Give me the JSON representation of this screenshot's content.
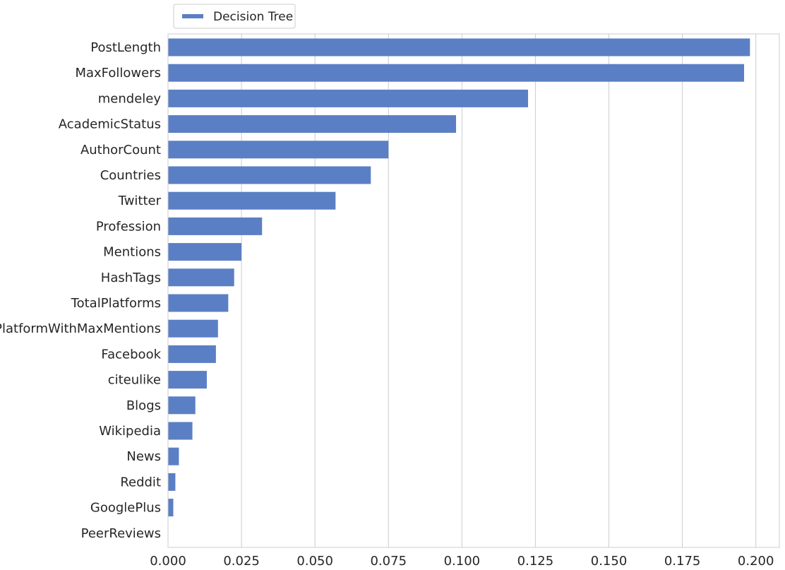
{
  "chart_data": {
    "type": "bar",
    "orientation": "horizontal",
    "title": "",
    "xlabel": "",
    "ylabel": "",
    "xlim": [
      0,
      0.208
    ],
    "grid": "vertical",
    "legend_position": "top-left, above plot",
    "series": [
      {
        "name": "Decision Tree",
        "color": "#5b7fc4",
        "values": [
          0.198,
          0.196,
          0.1225,
          0.098,
          0.075,
          0.069,
          0.057,
          0.032,
          0.025,
          0.0225,
          0.0205,
          0.017,
          0.0163,
          0.0132,
          0.0093,
          0.0083,
          0.0037,
          0.0025,
          0.0018,
          0.0
        ]
      }
    ],
    "categories": [
      "PostLength",
      "MaxFollowers",
      "mendeley",
      "AcademicStatus",
      "AuthorCount",
      "Countries",
      "Twitter",
      "Profession",
      "Mentions",
      "HashTags",
      "TotalPlatforms",
      "PlatformWithMaxMentions",
      "Facebook",
      "citeulike",
      "Blogs",
      "Wikipedia",
      "News",
      "Reddit",
      "GooglePlus",
      "PeerReviews"
    ],
    "xticks": [
      0.0,
      0.025,
      0.05,
      0.075,
      0.1,
      0.125,
      0.15,
      0.175,
      0.2
    ],
    "xtick_labels": [
      "0.000",
      "0.025",
      "0.050",
      "0.075",
      "0.100",
      "0.125",
      "0.150",
      "0.175",
      "0.200"
    ]
  }
}
